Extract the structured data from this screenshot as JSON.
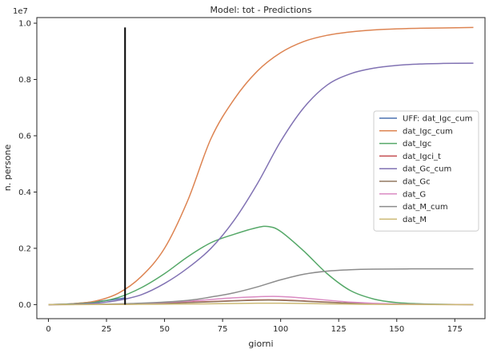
{
  "chart_data": {
    "type": "line",
    "title": "Model: tot - Predictions",
    "xlabel": "giorni",
    "ylabel": "n. persone",
    "y_offset_text": "1e7",
    "xlim": [
      -5,
      188
    ],
    "ylim": [
      -0.05,
      1.02
    ],
    "x_ticks": [
      0,
      25,
      50,
      75,
      100,
      125,
      150,
      175
    ],
    "x_tick_labels": [
      "0",
      "25",
      "50",
      "75",
      "100",
      "125",
      "150",
      "175"
    ],
    "y_ticks": [
      0.0,
      0.2,
      0.4,
      0.6,
      0.8,
      1.0
    ],
    "y_tick_labels": [
      "0.0",
      "0.2",
      "0.4",
      "0.6",
      "0.8",
      "1.0"
    ],
    "grid": false,
    "legend_position": "center-right",
    "vertical_marker": {
      "x": 33,
      "y_from": 0.0,
      "y_to": 0.985,
      "color": "#000000"
    },
    "series": [
      {
        "name": "UFF: dat_Igc_cum",
        "color": "#4c72b0",
        "x": [
          0,
          10,
          20,
          30,
          33
        ],
        "values": [
          0.0,
          0.003,
          0.01,
          0.02,
          0.024
        ]
      },
      {
        "name": "dat_Igc_cum",
        "color": "#dd8452",
        "x": [
          0,
          10,
          20,
          30,
          40,
          50,
          60,
          70,
          80,
          90,
          100,
          110,
          120,
          130,
          140,
          150,
          160,
          170,
          183
        ],
        "values": [
          0.0,
          0.003,
          0.012,
          0.04,
          0.1,
          0.2,
          0.37,
          0.59,
          0.73,
          0.83,
          0.895,
          0.935,
          0.957,
          0.969,
          0.976,
          0.98,
          0.982,
          0.983,
          0.985
        ]
      },
      {
        "name": "dat_Igc",
        "color": "#55a868",
        "x": [
          0,
          10,
          20,
          30,
          40,
          50,
          60,
          70,
          80,
          90,
          95,
          100,
          110,
          120,
          130,
          140,
          150,
          160,
          170,
          183
        ],
        "values": [
          0.0,
          0.002,
          0.008,
          0.025,
          0.06,
          0.11,
          0.17,
          0.22,
          0.25,
          0.274,
          0.277,
          0.26,
          0.19,
          0.11,
          0.05,
          0.02,
          0.007,
          0.003,
          0.001,
          0.0
        ]
      },
      {
        "name": "dat_Igci_t",
        "color": "#c44e52",
        "x": [
          0,
          20,
          40,
          60,
          80,
          95,
          110,
          130,
          150,
          183
        ],
        "values": [
          0.0,
          0.0005,
          0.002,
          0.008,
          0.014,
          0.017,
          0.013,
          0.005,
          0.001,
          0.0
        ]
      },
      {
        "name": "dat_Gc_cum",
        "color": "#8172b3",
        "x": [
          0,
          10,
          20,
          30,
          40,
          50,
          60,
          70,
          80,
          90,
          100,
          110,
          120,
          130,
          140,
          150,
          160,
          170,
          183
        ],
        "values": [
          0.0,
          0.001,
          0.005,
          0.015,
          0.035,
          0.075,
          0.13,
          0.2,
          0.3,
          0.43,
          0.58,
          0.7,
          0.78,
          0.82,
          0.84,
          0.85,
          0.855,
          0.857,
          0.858
        ]
      },
      {
        "name": "dat_Gc",
        "color": "#937860",
        "x": [
          0,
          20,
          40,
          60,
          80,
          95,
          110,
          130,
          150,
          183
        ],
        "values": [
          0.0,
          0.0005,
          0.002,
          0.007,
          0.013,
          0.016,
          0.012,
          0.005,
          0.001,
          0.0
        ]
      },
      {
        "name": "dat_G",
        "color": "#da8bc3",
        "x": [
          0,
          20,
          40,
          60,
          80,
          97,
          110,
          130,
          150,
          183
        ],
        "values": [
          0.0,
          0.0008,
          0.004,
          0.012,
          0.024,
          0.029,
          0.023,
          0.009,
          0.002,
          0.0
        ]
      },
      {
        "name": "dat_M_cum",
        "color": "#8c8c8c",
        "x": [
          0,
          20,
          40,
          60,
          70,
          80,
          90,
          100,
          110,
          120,
          130,
          140,
          160,
          183
        ],
        "values": [
          0.0,
          0.001,
          0.005,
          0.015,
          0.027,
          0.042,
          0.063,
          0.088,
          0.108,
          0.119,
          0.124,
          0.126,
          0.127,
          0.127
        ]
      },
      {
        "name": "dat_M",
        "color": "#ccb974",
        "x": [
          0,
          20,
          40,
          60,
          80,
          95,
          110,
          130,
          150,
          183
        ],
        "values": [
          0.0,
          0.0002,
          0.001,
          0.002,
          0.004,
          0.005,
          0.004,
          0.0015,
          0.0003,
          0.0
        ]
      }
    ]
  }
}
